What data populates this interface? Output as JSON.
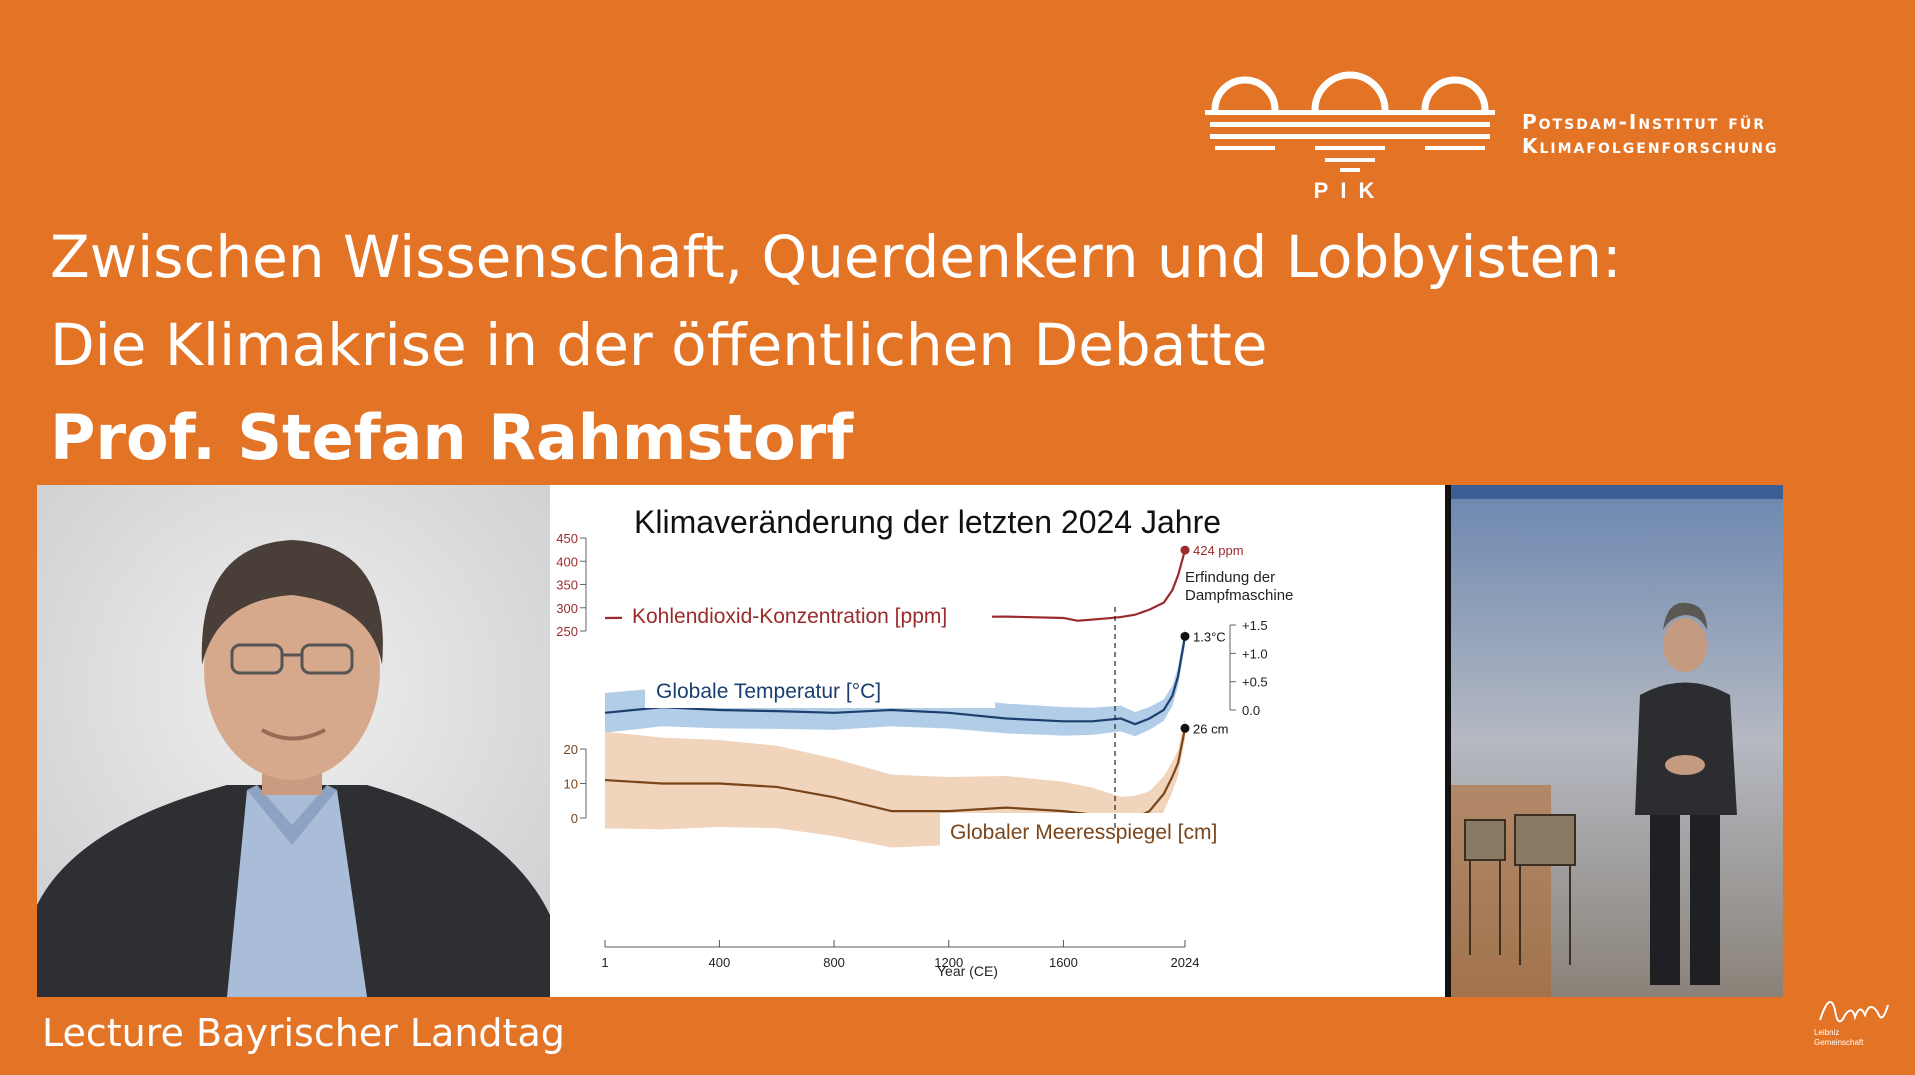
{
  "header": {
    "logo_abbr": "PIK",
    "institute_line1": "Potsdam-Institut für",
    "institute_line2": "Klimafolgenforschung"
  },
  "title": {
    "line1": "Zwischen Wissenschaft, Querdenkern und Lobbyisten:",
    "line2": "Die Klimakrise in der öffentlichen Debatte",
    "speaker": "Prof. Stefan Rahmstorf"
  },
  "footer": {
    "label": "Lecture Bayrischer Landtag"
  },
  "colors": {
    "background": "#e37325",
    "co2": "#9b2b2b",
    "temperature": "#1c3f6e",
    "temperature_band": "#aac8e6",
    "sea_level": "#7a4519",
    "sea_level_band": "#eecfb5"
  },
  "chart_data": {
    "type": "line",
    "title": "Klimaveränderung der letzten 2024 Jahre",
    "xlabel": "Year (CE)",
    "x_ticks": [
      "1",
      "400",
      "800",
      "1200",
      "1600",
      "2024"
    ],
    "xlim": [
      1,
      2024
    ],
    "annotation": [
      "Erfindung der",
      "Dampfmaschine"
    ],
    "annotation_year": 1780,
    "series": [
      {
        "name": "Kohlendioxid-Konzentration [ppm]",
        "y_ticks": [
          "450",
          "400",
          "350",
          "300",
          "250"
        ],
        "ylim": [
          250,
          450
        ],
        "end_label": "424 ppm",
        "x": [
          1,
          200,
          400,
          600,
          800,
          1000,
          1200,
          1400,
          1600,
          1650,
          1750,
          1800,
          1850,
          1900,
          1950,
          1980,
          2000,
          2024
        ],
        "values": [
          278,
          279,
          279,
          278,
          278,
          279,
          280,
          281,
          278,
          272,
          277,
          280,
          285,
          296,
          311,
          338,
          370,
          424
        ]
      },
      {
        "name": "Globale Temperatur [°C]",
        "y_ticks": [
          "+1.5",
          "+1.0",
          "+0.5",
          "0.0"
        ],
        "ylim": [
          0,
          1.5
        ],
        "end_label": "1.3°C",
        "x": [
          1,
          200,
          400,
          600,
          800,
          1000,
          1200,
          1400,
          1600,
          1700,
          1800,
          1850,
          1900,
          1950,
          1980,
          2000,
          2024
        ],
        "values": [
          -0.05,
          0.05,
          0.0,
          -0.02,
          -0.05,
          0.0,
          -0.05,
          -0.15,
          -0.2,
          -0.2,
          -0.15,
          -0.25,
          -0.15,
          0.0,
          0.25,
          0.6,
          1.3
        ]
      },
      {
        "name": "Globaler Meeresspiegel [cm]",
        "y_ticks": [
          "20",
          "10",
          "0"
        ],
        "ylim": [
          0,
          20
        ],
        "end_label": "26 cm",
        "x": [
          1,
          200,
          400,
          600,
          800,
          1000,
          1200,
          1400,
          1600,
          1700,
          1800,
          1850,
          1900,
          1950,
          1980,
          2000,
          2024
        ],
        "values": [
          11,
          10,
          10,
          9,
          6,
          2,
          2,
          3,
          2,
          1,
          -1,
          0,
          2,
          7,
          12,
          16,
          26
        ]
      }
    ]
  }
}
